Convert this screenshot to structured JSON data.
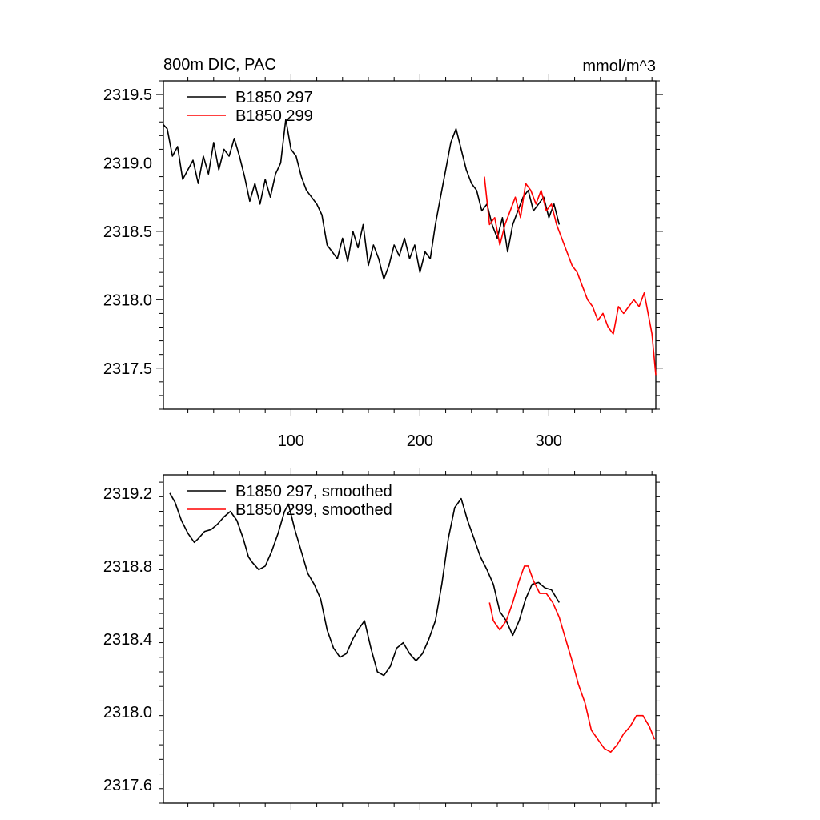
{
  "chart_data": [
    {
      "type": "line",
      "title": "800m DIC, PAC",
      "units": "mmol/m^3",
      "xlabel": "",
      "ylabel": "",
      "xlim": [
        1,
        383
      ],
      "ylim": [
        2317.2,
        2319.6
      ],
      "x_ticks": [
        100,
        200,
        300
      ],
      "x_tick_labels": [
        "100",
        "200",
        "300"
      ],
      "y_ticks": [
        2317.5,
        2318.0,
        2318.5,
        2319.0,
        2319.5
      ],
      "y_tick_labels": [
        "2317.5",
        "2318.0",
        "2318.5",
        "2319.0",
        "2319.5"
      ],
      "grid": false,
      "legend_position": "top-left",
      "series": [
        {
          "name": "B1850 297",
          "color": "#000000",
          "x": [
            1,
            4,
            8,
            12,
            16,
            20,
            24,
            28,
            32,
            36,
            40,
            44,
            48,
            52,
            56,
            60,
            64,
            68,
            72,
            76,
            80,
            84,
            88,
            92,
            96,
            100,
            104,
            108,
            112,
            116,
            120,
            124,
            128,
            132,
            136,
            140,
            144,
            148,
            152,
            156,
            160,
            164,
            168,
            172,
            176,
            180,
            184,
            188,
            192,
            196,
            200,
            204,
            208,
            212,
            216,
            220,
            224,
            228,
            232,
            236,
            240,
            244,
            248,
            252,
            256,
            260,
            264,
            268,
            272,
            276,
            280,
            284,
            288,
            292,
            296,
            300,
            304,
            308
          ],
          "y": [
            2319.28,
            2319.25,
            2319.05,
            2319.12,
            2318.88,
            2318.95,
            2319.02,
            2318.85,
            2319.05,
            2318.92,
            2319.15,
            2318.95,
            2319.1,
            2319.05,
            2319.18,
            2319.05,
            2318.9,
            2318.72,
            2318.85,
            2318.7,
            2318.88,
            2318.75,
            2318.92,
            2319.0,
            2319.32,
            2319.1,
            2319.05,
            2318.9,
            2318.8,
            2318.75,
            2318.7,
            2318.62,
            2318.4,
            2318.35,
            2318.3,
            2318.45,
            2318.28,
            2318.5,
            2318.38,
            2318.55,
            2318.25,
            2318.4,
            2318.3,
            2318.15,
            2318.25,
            2318.4,
            2318.32,
            2318.45,
            2318.3,
            2318.4,
            2318.2,
            2318.35,
            2318.3,
            2318.55,
            2318.75,
            2318.95,
            2319.15,
            2319.25,
            2319.1,
            2318.95,
            2318.85,
            2318.8,
            2318.65,
            2318.7,
            2318.55,
            2318.45,
            2318.6,
            2318.35,
            2318.55,
            2318.65,
            2318.75,
            2318.8,
            2318.65,
            2318.7,
            2318.75,
            2318.6,
            2318.7,
            2318.55
          ]
        },
        {
          "name": "B1850 299",
          "color": "#ff0000",
          "x": [
            250,
            254,
            258,
            262,
            266,
            270,
            274,
            278,
            282,
            286,
            290,
            294,
            298,
            302,
            306,
            310,
            314,
            318,
            322,
            326,
            330,
            334,
            338,
            342,
            346,
            350,
            354,
            358,
            362,
            366,
            370,
            374,
            378,
            380,
            383
          ],
          "y": [
            2318.9,
            2318.55,
            2318.6,
            2318.4,
            2318.55,
            2318.65,
            2318.75,
            2318.6,
            2318.85,
            2318.8,
            2318.7,
            2318.8,
            2318.65,
            2318.7,
            2318.55,
            2318.45,
            2318.35,
            2318.25,
            2318.2,
            2318.1,
            2318.0,
            2317.95,
            2317.85,
            2317.9,
            2317.8,
            2317.75,
            2317.95,
            2317.9,
            2317.95,
            2318.0,
            2317.95,
            2318.05,
            2317.85,
            2317.75,
            2317.45
          ]
        }
      ]
    },
    {
      "type": "line",
      "title": "",
      "xlabel": "",
      "ylabel": "",
      "xlim": [
        1,
        383
      ],
      "ylim": [
        2317.5,
        2319.3
      ],
      "x_ticks": [
        100,
        200,
        300
      ],
      "y_ticks": [
        2317.6,
        2318.0,
        2318.4,
        2318.8,
        2319.2
      ],
      "y_tick_labels": [
        "2317.6",
        "2318.0",
        "2318.4",
        "2318.8",
        "2319.2"
      ],
      "grid": false,
      "legend_position": "top-left",
      "series": [
        {
          "name": "B1850 297, smoothed",
          "color": "#000000",
          "x": [
            6,
            10,
            15,
            20,
            25,
            28,
            33,
            38,
            43,
            48,
            53,
            58,
            63,
            67,
            70,
            75,
            80,
            85,
            90,
            95,
            98,
            103,
            108,
            113,
            118,
            123,
            128,
            133,
            138,
            143,
            148,
            152,
            157,
            162,
            167,
            172,
            177,
            182,
            187,
            192,
            197,
            202,
            207,
            212,
            217,
            222,
            227,
            232,
            237,
            242,
            247,
            252,
            257,
            262,
            267,
            272,
            277,
            282,
            287,
            292,
            297,
            302,
            308
          ],
          "y": [
            2319.2,
            2319.15,
            2319.05,
            2318.98,
            2318.93,
            2318.95,
            2318.99,
            2319.0,
            2319.03,
            2319.07,
            2319.1,
            2319.05,
            2318.95,
            2318.85,
            2318.82,
            2318.78,
            2318.8,
            2318.88,
            2318.98,
            2319.1,
            2319.14,
            2319.0,
            2318.88,
            2318.76,
            2318.7,
            2318.62,
            2318.45,
            2318.35,
            2318.3,
            2318.32,
            2318.4,
            2318.45,
            2318.5,
            2318.35,
            2318.22,
            2318.2,
            2318.25,
            2318.35,
            2318.38,
            2318.32,
            2318.28,
            2318.32,
            2318.4,
            2318.5,
            2318.7,
            2318.95,
            2319.12,
            2319.17,
            2319.05,
            2318.95,
            2318.85,
            2318.78,
            2318.7,
            2318.55,
            2318.5,
            2318.42,
            2318.5,
            2318.62,
            2318.7,
            2318.71,
            2318.68,
            2318.67,
            2318.6
          ]
        },
        {
          "name": "B1850 299, smoothed",
          "color": "#ff0000",
          "x": [
            254,
            257,
            262,
            267,
            272,
            277,
            281,
            284,
            288,
            293,
            298,
            303,
            308,
            313,
            318,
            323,
            328,
            333,
            338,
            343,
            348,
            353,
            358,
            363,
            368,
            373,
            378,
            382
          ],
          "y": [
            2318.6,
            2318.5,
            2318.45,
            2318.5,
            2318.6,
            2318.72,
            2318.8,
            2318.8,
            2318.72,
            2318.65,
            2318.65,
            2318.6,
            2318.52,
            2318.4,
            2318.28,
            2318.15,
            2318.05,
            2317.9,
            2317.85,
            2317.8,
            2317.78,
            2317.82,
            2317.88,
            2317.92,
            2317.98,
            2317.98,
            2317.92,
            2317.85
          ]
        }
      ]
    }
  ]
}
